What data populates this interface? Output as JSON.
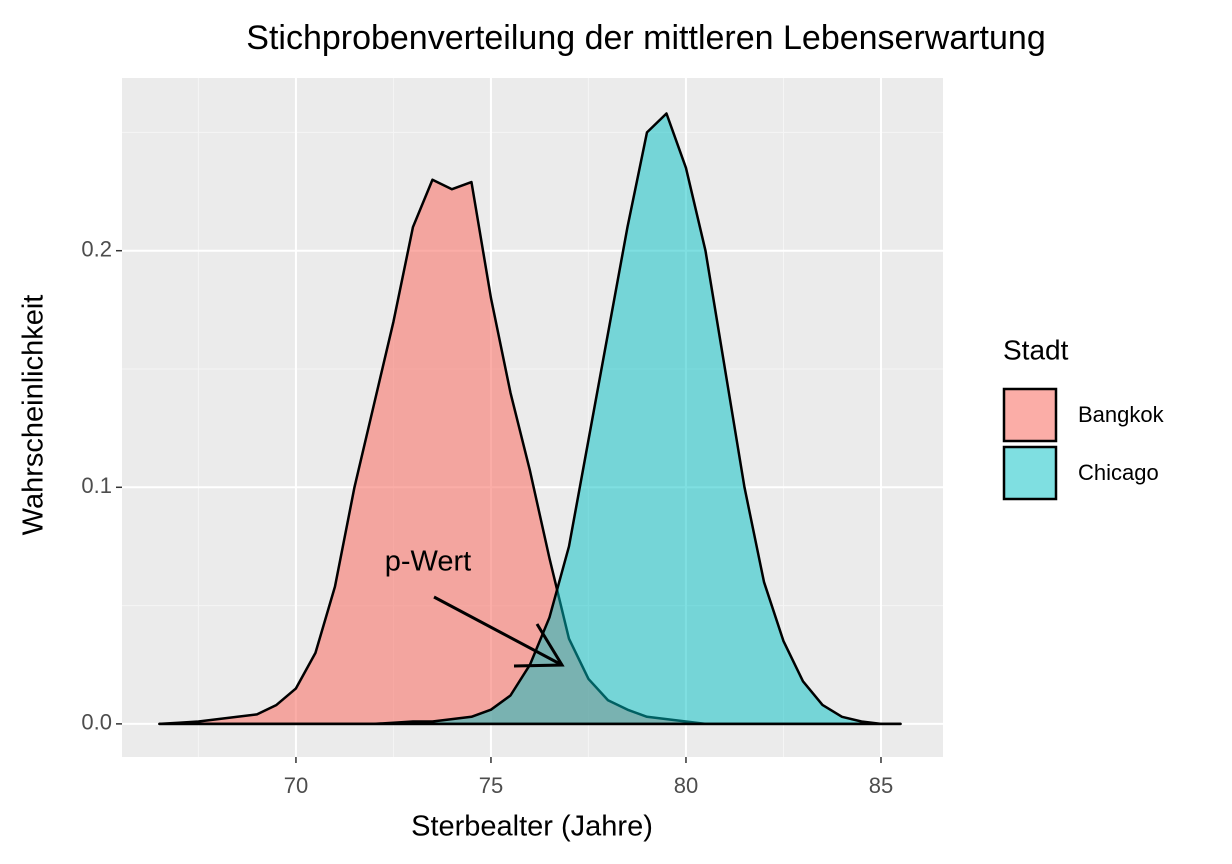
{
  "chart_data": {
    "type": "density",
    "title": "Stichprobenverteilung der mittleren Lebenserwartung",
    "x_label": "Sterbealter (Jahre)",
    "y_label": "Wahrscheinlichkeit",
    "legend_title": "Stadt",
    "legend_position": "right",
    "grid": true,
    "annotation": "p-Wert",
    "xlim": [
      65.54,
      86.59
    ],
    "ylim": [
      -0.014,
      0.273
    ],
    "xticks": [
      70,
      75,
      80,
      85
    ],
    "yticks": [
      {
        "value": 0,
        "label": "0.0"
      },
      0.1,
      0.2
    ],
    "x": [
      66.5,
      67,
      67.5,
      68,
      68.5,
      69,
      69.5,
      70,
      70.5,
      71,
      71.5,
      72,
      72.5,
      73,
      73.5,
      74,
      74.5,
      75,
      75.5,
      76,
      76.5,
      77,
      77.5,
      78,
      78.5,
      79,
      79.5,
      80,
      80.5,
      81,
      81.5,
      82,
      82.5,
      83,
      83.5,
      84,
      84.5,
      85,
      85.5
    ],
    "series": [
      {
        "name": "Bangkok",
        "color": "#f8766d",
        "values": [
          0,
          0.0005,
          0.001,
          0.002,
          0.003,
          0.004,
          0.008,
          0.015,
          0.03,
          0.058,
          0.1,
          0.135,
          0.17,
          0.21,
          0.23,
          0.226,
          0.229,
          0.18,
          0.14,
          0.107,
          0.07,
          0.036,
          0.019,
          0.01,
          0.006,
          0.003,
          0.002,
          0.001,
          0,
          0,
          0,
          0,
          0,
          0,
          0,
          0,
          0,
          0,
          0
        ]
      },
      {
        "name": "Chicago",
        "color": "#00bfc4",
        "values": [
          0,
          0,
          0,
          0,
          0,
          0,
          0,
          0,
          0,
          0,
          0,
          0,
          0.0005,
          0.001,
          0.001,
          0.002,
          0.003,
          0.006,
          0.012,
          0.025,
          0.045,
          0.075,
          0.12,
          0.165,
          0.21,
          0.25,
          0.258,
          0.235,
          0.2,
          0.15,
          0.1,
          0.06,
          0.035,
          0.018,
          0.008,
          0.003,
          0.001,
          0,
          0
        ]
      }
    ]
  }
}
